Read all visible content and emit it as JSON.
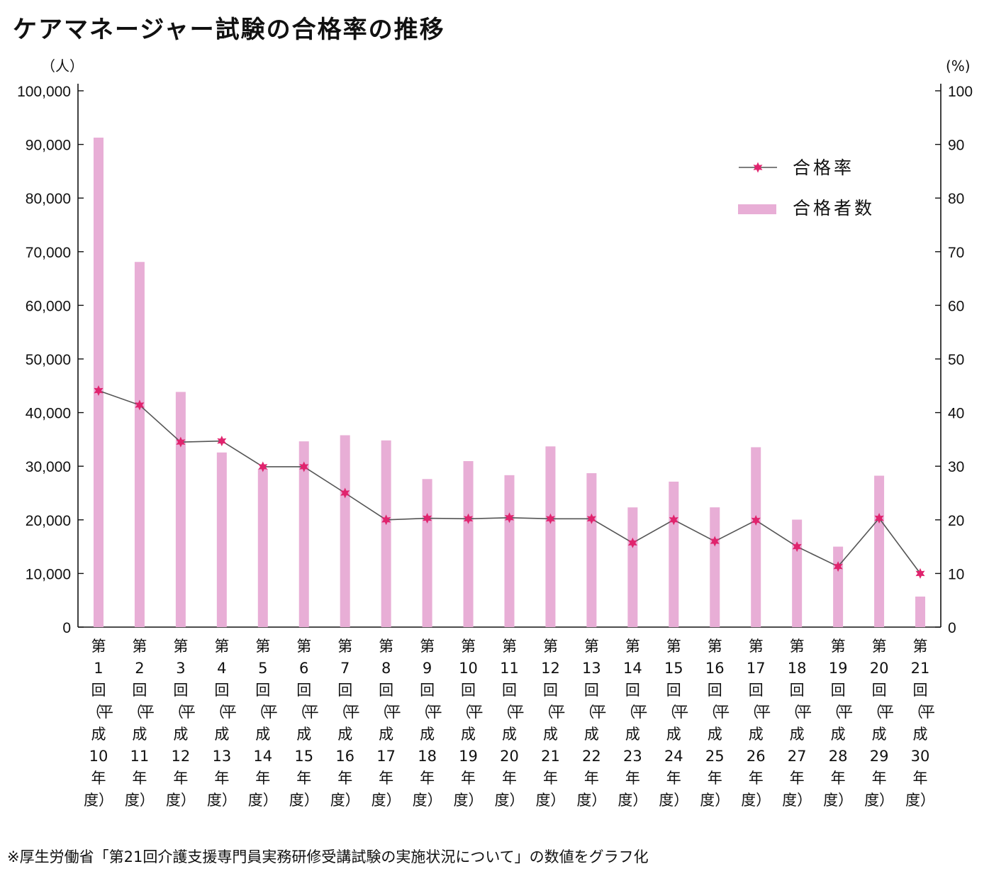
{
  "title": "ケアマネージャー試験の合格率の推移",
  "source": "※厚生労働省「第21回介護支援専門員実務研修受講試験の実施状況について」の数値をグラフ化",
  "colors": {
    "bar": "#e8aed6",
    "line": "#555555",
    "marker": "#e0246e",
    "axis": "#111111"
  },
  "chart_data": {
    "type": "bar",
    "left_unit": "（人）",
    "right_unit": "(%)",
    "left_ylim": [
      0,
      100000
    ],
    "right_ylim": [
      0,
      100
    ],
    "left_ticks": [
      "0",
      "10,000",
      "20,000",
      "30,000",
      "40,000",
      "50,000",
      "60,000",
      "70,000",
      "80,000",
      "90,000",
      "100,000"
    ],
    "right_ticks": [
      "0",
      "10",
      "20",
      "30",
      "40",
      "50",
      "60",
      "70",
      "80",
      "90",
      "100"
    ],
    "legend_position": "top-right",
    "categories": [
      [
        "第",
        "1",
        "回",
        "（平",
        "成",
        "10",
        "年",
        "度）"
      ],
      [
        "第",
        "2",
        "回",
        "（平",
        "成",
        "11",
        "年",
        "度）"
      ],
      [
        "第",
        "3",
        "回",
        "（平",
        "成",
        "12",
        "年",
        "度）"
      ],
      [
        "第",
        "4",
        "回",
        "（平",
        "成",
        "13",
        "年",
        "度）"
      ],
      [
        "第",
        "5",
        "回",
        "（平",
        "成",
        "14",
        "年",
        "度）"
      ],
      [
        "第",
        "6",
        "回",
        "（平",
        "成",
        "15",
        "年",
        "度）"
      ],
      [
        "第",
        "7",
        "回",
        "（平",
        "成",
        "16",
        "年",
        "度）"
      ],
      [
        "第",
        "8",
        "回",
        "（平",
        "成",
        "17",
        "年",
        "度）"
      ],
      [
        "第",
        "9",
        "回",
        "（平",
        "成",
        "18",
        "年",
        "度）"
      ],
      [
        "第",
        "10",
        "回",
        "（平",
        "成",
        "19",
        "年",
        "度）"
      ],
      [
        "第",
        "11",
        "回",
        "（平",
        "成",
        "20",
        "年",
        "度）"
      ],
      [
        "第",
        "12",
        "回",
        "（平",
        "成",
        "21",
        "年",
        "度）"
      ],
      [
        "第",
        "13",
        "回",
        "（平",
        "成",
        "22",
        "年",
        "度）"
      ],
      [
        "第",
        "14",
        "回",
        "（平",
        "成",
        "23",
        "年",
        "度）"
      ],
      [
        "第",
        "15",
        "回",
        "（平",
        "成",
        "24",
        "年",
        "度）"
      ],
      [
        "第",
        "16",
        "回",
        "（平",
        "成",
        "25",
        "年",
        "度）"
      ],
      [
        "第",
        "17",
        "回",
        "（平",
        "成",
        "26",
        "年",
        "度）"
      ],
      [
        "第",
        "18",
        "回",
        "（平",
        "成",
        "27",
        "年",
        "度）"
      ],
      [
        "第",
        "19",
        "回",
        "（平",
        "成",
        "28",
        "年",
        "度）"
      ],
      [
        "第",
        "20",
        "回",
        "（平",
        "成",
        "29",
        "年",
        "度）"
      ],
      [
        "第",
        "21",
        "回",
        "（平",
        "成",
        "30",
        "年",
        "度）"
      ]
    ],
    "series": [
      {
        "name": "合格者数",
        "type": "bar",
        "axis": "left",
        "values": [
          91269,
          68090,
          43854,
          32560,
          29508,
          34634,
          35774,
          34813,
          27607,
          30950,
          28330,
          33695,
          28700,
          22322,
          27125,
          22331,
          33539,
          20039,
          15003,
          28233,
          5695
        ]
      },
      {
        "name": "合格率",
        "type": "line",
        "axis": "right",
        "values": [
          44.1,
          41.4,
          34.5,
          34.7,
          29.9,
          29.9,
          25.0,
          20.0,
          20.3,
          20.2,
          20.4,
          20.2,
          20.2,
          15.7,
          20.0,
          16.0,
          19.9,
          15.0,
          11.3,
          20.3,
          10.0
        ]
      }
    ]
  }
}
